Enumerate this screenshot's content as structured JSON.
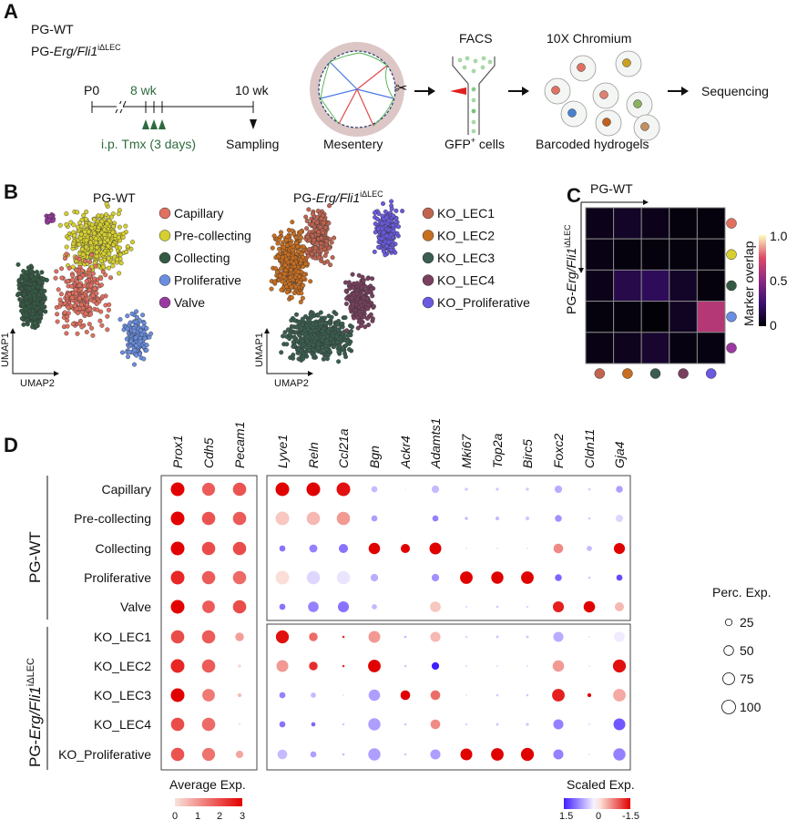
{
  "panels": {
    "a": "A",
    "b": "B",
    "c": "C",
    "d": "D"
  },
  "genotypes": {
    "wt": "PG-WT",
    "ko": {
      "prefix": "PG-",
      "gene": "Erg/Fli1",
      "sup": "iΔLEC"
    }
  },
  "timeline": {
    "p0": "P0",
    "wk8": "8 wk",
    "wk10": "10 wk",
    "tmx": "i.p. Tmx (3 days)",
    "sampling": "Sampling"
  },
  "workflow": {
    "mesentery": "Mesentery",
    "facs": "FACS",
    "gfp": "GFP",
    "gfp_sup": "+",
    "gfp_suffix": " cells",
    "chromium": "10X Chromium",
    "hydrogels": "Barcoded hydrogels",
    "sequencing": "Sequencing"
  },
  "umap": {
    "axis_x": "UMAP2",
    "axis_y": "UMAP1",
    "wt_clusters": [
      {
        "name": "Capillary",
        "color": "#e07060"
      },
      {
        "name": "Pre-collecting",
        "color": "#d6cf30"
      },
      {
        "name": "Collecting",
        "color": "#345a44"
      },
      {
        "name": "Proliferative",
        "color": "#6a8ee0"
      },
      {
        "name": "Valve",
        "color": "#9a3aa0"
      }
    ],
    "ko_clusters": [
      {
        "name": "KO_LEC1",
        "color": "#c06450"
      },
      {
        "name": "KO_LEC2",
        "color": "#c86e20"
      },
      {
        "name": "KO_LEC3",
        "color": "#3a5e50"
      },
      {
        "name": "KO_LEC4",
        "color": "#78405e"
      },
      {
        "name": "KO_Proliferative",
        "color": "#6a5ae0"
      }
    ]
  },
  "overlap": {
    "colorbar_label": "Marker overlap",
    "ticks": [
      "0",
      "0.5",
      "1.0"
    ],
    "colormap": "magma",
    "row_group": "PG-WT clusters",
    "values": [
      [
        0.05,
        0.08,
        0.05,
        0.02,
        0.02
      ],
      [
        0.04,
        0.02,
        0.02,
        0.02,
        0.02
      ],
      [
        0.05,
        0.16,
        0.2,
        0.08,
        0.02
      ],
      [
        0.02,
        0.02,
        0.01,
        0.07,
        0.62
      ],
      [
        0.04,
        0.06,
        0.1,
        0.03,
        0.03
      ]
    ]
  },
  "dotplot": {
    "rows": [
      "Capillary",
      "Pre-collecting",
      "Collecting",
      "Proliferative",
      "Valve",
      "KO_LEC1",
      "KO_LEC2",
      "KO_LEC3",
      "KO_LEC4",
      "KO_Proliferative"
    ],
    "left_genes": [
      "Prox1",
      "Cdh5",
      "Pecam1"
    ],
    "right_genes": [
      "Lyve1",
      "Reln",
      "Ccl21a",
      "Bgn",
      "Ackr4",
      "Adamts1",
      "Mki67",
      "Top2a",
      "Birc5",
      "Foxc2",
      "Cldn11",
      "Gja4"
    ],
    "left_values_avg_perc": [
      [
        [
          3,
          100
        ],
        [
          1.8,
          90
        ],
        [
          1.9,
          95
        ]
      ],
      [
        [
          3,
          100
        ],
        [
          1.9,
          95
        ],
        [
          1.8,
          95
        ]
      ],
      [
        [
          3,
          100
        ],
        [
          2,
          95
        ],
        [
          2,
          95
        ]
      ],
      [
        [
          2.5,
          100
        ],
        [
          1.8,
          95
        ],
        [
          1.6,
          95
        ]
      ],
      [
        [
          3,
          100
        ],
        [
          1.8,
          85
        ],
        [
          2,
          95
        ]
      ],
      [
        [
          2,
          95
        ],
        [
          1.8,
          95
        ],
        [
          0.9,
          40
        ]
      ],
      [
        [
          2.5,
          100
        ],
        [
          1.8,
          95
        ],
        [
          0.2,
          5
        ]
      ],
      [
        [
          3,
          100
        ],
        [
          1.4,
          85
        ],
        [
          0.5,
          8
        ]
      ],
      [
        [
          2,
          95
        ],
        [
          1.6,
          95
        ],
        [
          0.1,
          2
        ]
      ],
      [
        [
          1.9,
          95
        ],
        [
          1.5,
          90
        ],
        [
          0.8,
          30
        ]
      ]
    ],
    "right_values_scaled_perc": [
      [
        [
          -1.5,
          100
        ],
        [
          -1.5,
          100
        ],
        [
          -1.4,
          100
        ],
        [
          0.4,
          20
        ],
        [
          0,
          2
        ],
        [
          0.4,
          30
        ],
        [
          0.3,
          5
        ],
        [
          0.3,
          5
        ],
        [
          0.3,
          5
        ],
        [
          0.5,
          30
        ],
        [
          0.3,
          3
        ],
        [
          0.6,
          25
        ]
      ],
      [
        [
          -0.2,
          100
        ],
        [
          -0.3,
          95
        ],
        [
          -0.5,
          95
        ],
        [
          0.6,
          20
        ],
        [
          0,
          1
        ],
        [
          0.8,
          20
        ],
        [
          0.4,
          5
        ],
        [
          0.4,
          8
        ],
        [
          0.3,
          8
        ],
        [
          0.7,
          25
        ],
        [
          0.3,
          3
        ],
        [
          0.2,
          30
        ]
      ],
      [
        [
          0.9,
          20
        ],
        [
          0.8,
          35
        ],
        [
          0.9,
          45
        ],
        [
          -1.5,
          70
        ],
        [
          -1.5,
          45
        ],
        [
          -1.5,
          75
        ],
        [
          0.1,
          2
        ],
        [
          0.1,
          2
        ],
        [
          0.1,
          2
        ],
        [
          -0.6,
          50
        ],
        [
          0.4,
          15
        ],
        [
          -1.5,
          65
        ]
      ],
      [
        [
          -0.05,
          100
        ],
        [
          0.2,
          95
        ],
        [
          0.1,
          95
        ],
        [
          0.5,
          30
        ],
        [
          0,
          1
        ],
        [
          0.7,
          30
        ],
        [
          -1.5,
          85
        ],
        [
          -1.5,
          80
        ],
        [
          -1.5,
          85
        ],
        [
          1,
          25
        ],
        [
          0.3,
          3
        ],
        [
          1.2,
          20
        ]
      ],
      [
        [
          0.9,
          20
        ],
        [
          0.8,
          60
        ],
        [
          0.9,
          65
        ],
        [
          0.4,
          15
        ],
        [
          0,
          1
        ],
        [
          -0.2,
          60
        ],
        [
          0.2,
          2
        ],
        [
          0.3,
          3
        ],
        [
          0.3,
          2
        ],
        [
          -1.3,
          65
        ],
        [
          -1.5,
          70
        ],
        [
          -0.3,
          45
        ]
      ],
      [
        [
          -1.4,
          90
        ],
        [
          -0.8,
          40
        ],
        [
          -1.2,
          3
        ],
        [
          -0.5,
          75
        ],
        [
          0.4,
          3
        ],
        [
          -0.3,
          55
        ],
        [
          0.2,
          3
        ],
        [
          0.3,
          4
        ],
        [
          0.3,
          4
        ],
        [
          0.5,
          55
        ],
        [
          0.1,
          2
        ],
        [
          0.05,
          60
        ]
      ],
      [
        [
          -0.5,
          75
        ],
        [
          -1.2,
          40
        ],
        [
          -1.2,
          3
        ],
        [
          -1.5,
          85
        ],
        [
          0.3,
          3
        ],
        [
          1.5,
          30
        ],
        [
          0.2,
          2
        ],
        [
          0.2,
          2
        ],
        [
          0.2,
          2
        ],
        [
          -0.5,
          70
        ],
        [
          0.1,
          2
        ],
        [
          -1.4,
          90
        ]
      ],
      [
        [
          0.8,
          20
        ],
        [
          0.4,
          15
        ],
        [
          0.1,
          2
        ],
        [
          0.6,
          70
        ],
        [
          -1.5,
          50
        ],
        [
          -0.8,
          50
        ],
        [
          0.1,
          2
        ],
        [
          0.3,
          3
        ],
        [
          0.3,
          3
        ],
        [
          -1.3,
          85
        ],
        [
          -1.5,
          8
        ],
        [
          -0.4,
          85
        ]
      ],
      [
        [
          0.9,
          20
        ],
        [
          1,
          10
        ],
        [
          0.3,
          3
        ],
        [
          0.6,
          80
        ],
        [
          0.3,
          3
        ],
        [
          -0.6,
          50
        ],
        [
          0.2,
          3
        ],
        [
          0.3,
          4
        ],
        [
          0.3,
          5
        ],
        [
          0.8,
          55
        ],
        [
          0.2,
          2
        ],
        [
          1.1,
          75
        ]
      ],
      [
        [
          0.4,
          50
        ],
        [
          0.6,
          20
        ],
        [
          0.4,
          3
        ],
        [
          0.6,
          80
        ],
        [
          0.3,
          3
        ],
        [
          0.6,
          55
        ],
        [
          -1.5,
          75
        ],
        [
          -1.5,
          85
        ],
        [
          -1.5,
          90
        ],
        [
          0.8,
          55
        ],
        [
          0.1,
          2
        ],
        [
          0.8,
          80
        ]
      ]
    ],
    "avg_legend": {
      "title": "Average Exp.",
      "ticks": [
        "0",
        "1",
        "2",
        "3"
      ],
      "low": "#f9e3dc",
      "high": "#e30000"
    },
    "scaled_legend": {
      "title": "Scaled Exp.",
      "ticks": [
        "1.5",
        "0",
        "-1.5"
      ],
      "blue": "#3f1fff",
      "mid": "#f6f2ff",
      "red": "#e00000"
    },
    "perc_legend": {
      "title": "Perc. Exp.",
      "ticks": [
        "25",
        "50",
        "75",
        "100"
      ]
    }
  }
}
